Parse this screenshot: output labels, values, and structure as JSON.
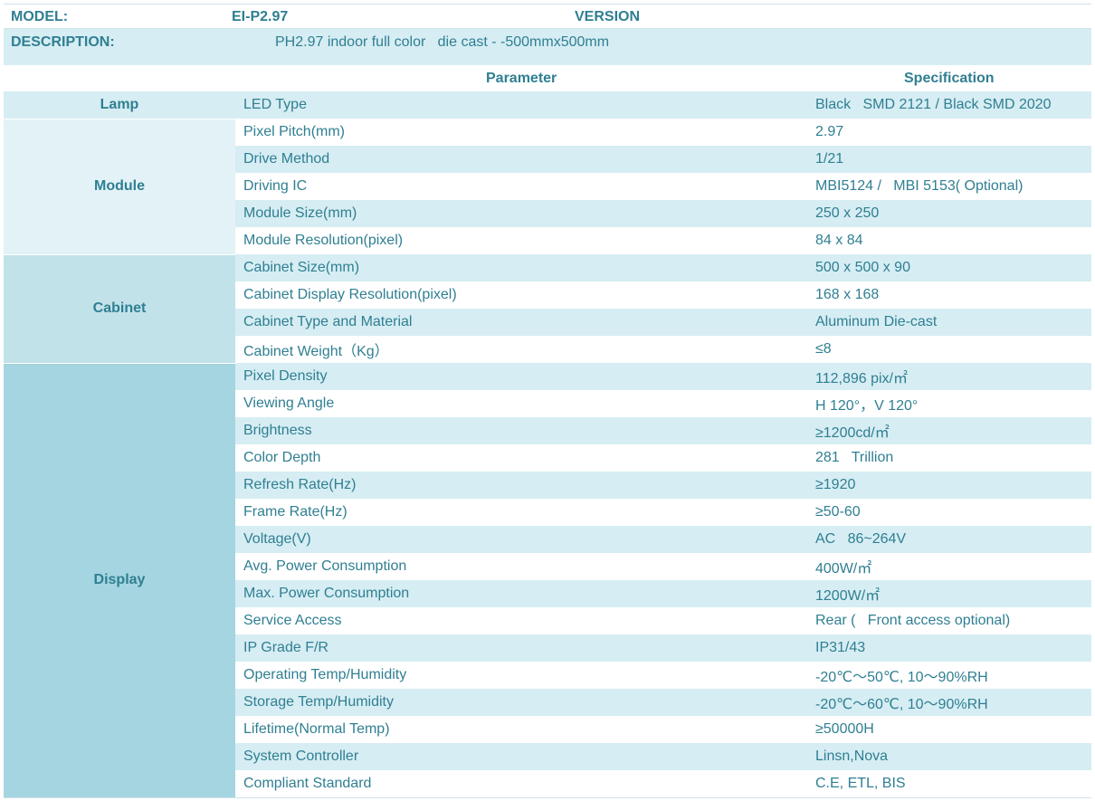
{
  "header": {
    "model_label": "MODEL:",
    "model_value": "EI-P2.97",
    "version_label": "VERSION",
    "description_label": "DESCRIPTION:",
    "description_value": "PH2.97 indoor full color   die cast - -500mmx500mm"
  },
  "columns": {
    "parameter": "Parameter",
    "specification": "Specification"
  },
  "groups": {
    "lamp": "Lamp",
    "module": "Module",
    "cabinet": "Cabinet",
    "display": "Display"
  },
  "rows": [
    {
      "param": "LED Type",
      "spec": "Black   SMD 2121 / Black SMD 2020"
    },
    {
      "param": "Pixel Pitch(mm)",
      "spec": "2.97"
    },
    {
      "param": "Drive Method",
      "spec": "1/21"
    },
    {
      "param": "Driving IC",
      "spec": "MBI5124 /   MBI 5153( Optional)"
    },
    {
      "param": "Module Size(mm)",
      "spec": "250 x 250"
    },
    {
      "param": "Module Resolution(pixel)",
      "spec": "84 x 84"
    },
    {
      "param": "Cabinet Size(mm)",
      "spec": "500 x 500 x 90"
    },
    {
      "param": "Cabinet Display Resolution(pixel)",
      "spec": "168 x 168"
    },
    {
      "param": "Cabinet Type and Material",
      "spec": "Aluminum Die-cast"
    },
    {
      "param": "Cabinet Weight（Kg）",
      "spec": "≤8"
    },
    {
      "param": "Pixel Density",
      "spec": "112,896 pix/㎡"
    },
    {
      "param": "Viewing Angle",
      "spec": "H 120°，V 120°"
    },
    {
      "param": "Brightness",
      "spec": "≥1200cd/㎡"
    },
    {
      "param": "Color Depth",
      "spec": "281   Trillion"
    },
    {
      "param": "Refresh Rate(Hz)",
      "spec": "≥1920"
    },
    {
      "param": "Frame Rate(Hz)",
      "spec": "≥50-60"
    },
    {
      "param": "Voltage(V)",
      "spec": "AC   86~264V"
    },
    {
      "param": "Avg. Power Consumption",
      "spec": "400W/㎡"
    },
    {
      "param": "Max. Power Consumption",
      "spec": "1200W/㎡"
    },
    {
      "param": "Service Access",
      "spec": "Rear (   Front access optional)"
    },
    {
      "param": "IP Grade F/R",
      "spec": "IP31/43"
    },
    {
      "param": "Operating Temp/Humidity",
      "spec": "-20℃～50℃, 10～90%RH"
    },
    {
      "param": "Storage Temp/Humidity",
      "spec": "-20℃～60℃, 10～90%RH"
    },
    {
      "param": "Lifetime(Normal Temp)",
      "spec": "≥50000H"
    },
    {
      "param": "System Controller",
      "spec": "Linsn,Nova"
    },
    {
      "param": "Compliant Standard",
      "spec": "C.E, ETL, BIS"
    }
  ]
}
